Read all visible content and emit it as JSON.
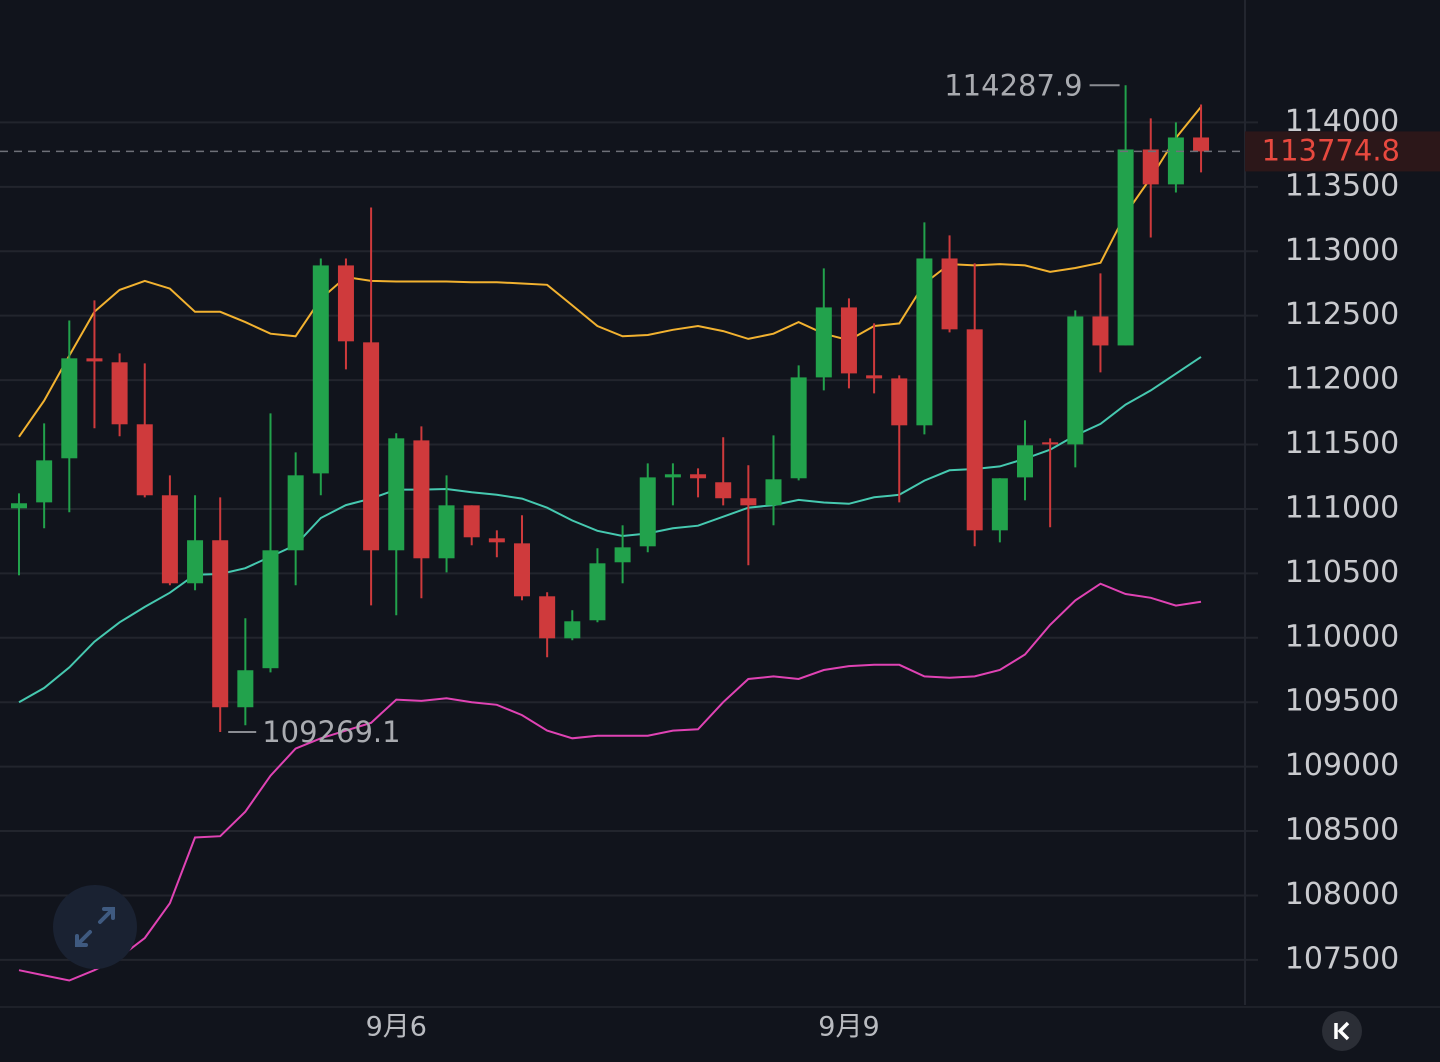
{
  "chart_data": {
    "type": "candlestick",
    "categories": [
      null,
      null,
      null,
      null,
      null,
      null,
      null,
      null,
      null,
      null,
      null,
      null,
      null,
      null,
      null,
      "9月6",
      null,
      null,
      null,
      null,
      null,
      null,
      null,
      null,
      null,
      null,
      null,
      null,
      null,
      null,
      null,
      null,
      null,
      "9月9",
      null,
      null,
      null,
      null,
      null,
      null,
      null,
      null,
      null,
      null,
      null,
      null,
      null,
      null
    ],
    "open": [
      111005,
      111051,
      111393,
      112169,
      112138,
      111657,
      111106,
      110423,
      110757,
      109461,
      109764,
      110679,
      111276,
      112890,
      112293,
      110679,
      111532,
      110617,
      111028,
      110772,
      110733,
      110322,
      109996,
      110136,
      110586,
      110710,
      111245,
      111269,
      111207,
      111083,
      111028,
      111238,
      112021,
      112564,
      112037,
      112013,
      111649,
      112944,
      112394,
      110834,
      111245,
      111517,
      111501,
      112494,
      112269,
      113790,
      113519,
      113883
    ],
    "high": [
      111121,
      111664,
      112463,
      112619,
      112207,
      112130,
      111261,
      111106,
      111090,
      110152,
      111742,
      111439,
      112944,
      112944,
      113340,
      111587,
      111641,
      111261,
      111028,
      110834,
      110951,
      110353,
      110214,
      110695,
      110873,
      111354,
      111354,
      111315,
      111556,
      111339,
      111571,
      112114,
      112867,
      112634,
      112440,
      112037,
      113224,
      113123,
      112906,
      111238,
      111688,
      111548,
      112541,
      112828,
      114287.9,
      114031,
      114000,
      114139
    ],
    "low": [
      110485,
      110850,
      110974,
      111626,
      111564,
      111090,
      110408,
      110369,
      109269.1,
      109321,
      109732,
      110408,
      111106,
      112083,
      110252,
      110175,
      110307,
      110508,
      110718,
      110625,
      110291,
      109849,
      109981,
      110121,
      110423,
      110664,
      111028,
      111090,
      111028,
      110563,
      110873,
      111222,
      111920,
      111936,
      111897,
      111051,
      111579,
      112370,
      110710,
      110741,
      111067,
      110858,
      111323,
      112060,
      112269,
      113107,
      113456,
      113612
    ],
    "close": [
      111044,
      111377,
      112169,
      112145,
      111657,
      111106,
      110423,
      110757,
      109461,
      109748,
      110679,
      111261,
      112890,
      112301,
      110679,
      111548,
      110617,
      111028,
      110780,
      110741,
      110322,
      109996,
      110128,
      110578,
      110702,
      111245,
      111269,
      111238,
      111083,
      111028,
      111230,
      112021,
      112564,
      112052,
      112013,
      111649,
      112944,
      112394,
      110834,
      111238,
      111494,
      111501,
      112494,
      112269,
      113790,
      113519,
      113883,
      113774.8
    ],
    "up_color": "#22a24c",
    "down_color": "#cf3a3c",
    "overlays": [
      {
        "color": "#f2b230",
        "values": [
          111560,
          111840,
          112190,
          112530,
          112700,
          112770,
          112710,
          112530,
          112530,
          112450,
          112360,
          112340,
          112630,
          112800,
          112770,
          112765,
          112765,
          112765,
          112760,
          112760,
          112750,
          112740,
          112580,
          112420,
          112340,
          112350,
          112390,
          112420,
          112380,
          112320,
          112360,
          112450,
          112360,
          112310,
          112420,
          112440,
          112750,
          112900,
          112890,
          112900,
          112890,
          112840,
          112870,
          112910,
          113290,
          113570,
          113880,
          114120
        ]
      },
      {
        "color": "#46c9b0",
        "values": [
          109500,
          109610,
          109770,
          109970,
          110120,
          110240,
          110350,
          110490,
          110495,
          110540,
          110630,
          110720,
          110930,
          111030,
          111080,
          111150,
          111150,
          111155,
          111130,
          111110,
          111080,
          111010,
          110910,
          110830,
          110790,
          110810,
          110850,
          110870,
          110940,
          111010,
          111030,
          111070,
          111050,
          111040,
          111090,
          111110,
          111220,
          111300,
          111310,
          111330,
          111390,
          111460,
          111570,
          111660,
          111810,
          111920,
          112050,
          112180
        ]
      },
      {
        "color": "#e043b4",
        "values": [
          107420,
          107380,
          107340,
          107420,
          107520,
          107670,
          107940,
          108450,
          108460,
          108650,
          108930,
          109140,
          109220,
          109280,
          109340,
          109520,
          109510,
          109530,
          109500,
          109480,
          109400,
          109280,
          109220,
          109240,
          109240,
          109240,
          109280,
          109290,
          109500,
          109680,
          109700,
          109680,
          109750,
          109780,
          109790,
          109790,
          109700,
          109690,
          109700,
          109750,
          109870,
          110100,
          110290,
          110420,
          110340,
          110310,
          110250,
          110280
        ]
      }
    ],
    "ylim": [
      107150,
      114950
    ],
    "yticks": [
      114000,
      113500,
      113000,
      112500,
      112000,
      111500,
      111000,
      110500,
      110000,
      109500,
      109000,
      108500,
      108000,
      107500
    ],
    "grid": true
  }
}
